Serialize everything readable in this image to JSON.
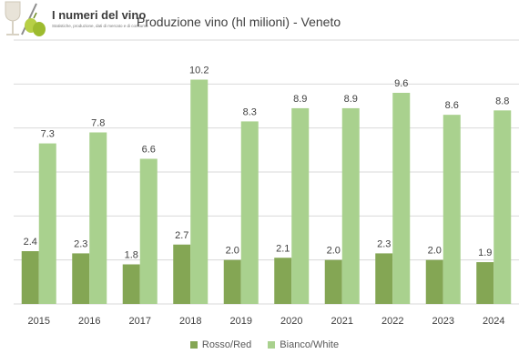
{
  "header": {
    "logo_title": "I numeri del vino",
    "logo_subtitle": "Statistiche, produzione, dati di mercato e di consumo"
  },
  "colors": {
    "red_series": "#84a654",
    "white_series": "#a9d18e",
    "grid": "#d9d9d9",
    "text": "#404040"
  },
  "chart_data": {
    "type": "bar",
    "title": "Produzione vino (hl milioni) - Veneto",
    "xlabel": "",
    "ylabel": "",
    "categories": [
      "2015",
      "2016",
      "2017",
      "2018",
      "2019",
      "2020",
      "2021",
      "2022",
      "2023",
      "2024"
    ],
    "series": [
      {
        "name": "Rosso/Red",
        "values": [
          2.4,
          2.3,
          1.8,
          2.7,
          2.0,
          2.1,
          2.0,
          2.3,
          2.0,
          1.9
        ],
        "labels": [
          "2.4",
          "2.3",
          "1.8",
          "2.7",
          "2.0",
          "2.1",
          "2.0",
          "2.3",
          "2.0",
          "1.9"
        ]
      },
      {
        "name": "Bianco/White",
        "values": [
          7.3,
          7.8,
          6.6,
          10.2,
          8.3,
          8.9,
          8.9,
          9.6,
          8.6,
          8.8
        ],
        "labels": [
          "7.3",
          "7.8",
          "6.6",
          "10.2",
          "8.3",
          "8.9",
          "8.9",
          "9.6",
          "8.6",
          "8.8"
        ]
      }
    ],
    "ylim": [
      0,
      12
    ],
    "grid": true,
    "legend_position": "bottom"
  }
}
